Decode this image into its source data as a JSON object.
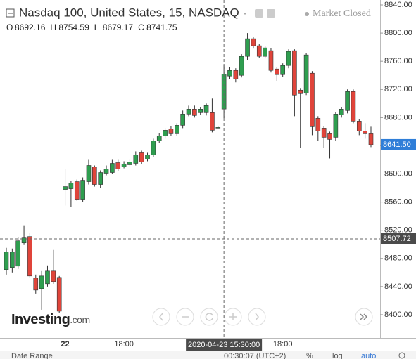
{
  "chart_data": {
    "type": "candlestick",
    "title": "Nasdaq 100, United States, 15, NASDAQ",
    "status": "Market Closed",
    "brand": "Investing",
    "brand_suffix": ".com",
    "ohlc_letters": [
      "O",
      "H",
      "L",
      "C"
    ],
    "ohlc_values": [
      8692.16,
      8754.59,
      8679.17,
      8741.75
    ],
    "categories": [
      null,
      null,
      null,
      null,
      null,
      null,
      null,
      null,
      null,
      null,
      "22",
      null,
      null,
      null,
      null,
      null,
      null,
      null,
      null,
      null,
      "18:00",
      null,
      null,
      null,
      null,
      null,
      null,
      null,
      null,
      null,
      null,
      null,
      null,
      null,
      null,
      null,
      null,
      "2020-04-23 15:30:00",
      null,
      null,
      null,
      null,
      null,
      null,
      null,
      null,
      null,
      "18:00",
      null,
      null,
      null,
      null,
      null,
      null,
      null,
      null,
      null,
      null,
      null,
      null,
      null,
      null,
      null
    ],
    "crosshair_category": "2020-04-23 15:30:00",
    "crosshair_price": 8507.72,
    "last_price": {
      "value": 8641.5,
      "label": "8641.50"
    },
    "open": [
      8464,
      8467,
      8469,
      8502,
      8511,
      8452,
      8437,
      8444,
      8462,
      8453,
      8578,
      8579,
      8589,
      8564,
      8589,
      8610,
      8585,
      8601,
      8602,
      8616,
      8610,
      8613,
      8615,
      8630,
      8621,
      8627,
      8647,
      8654,
      8664,
      8657,
      8669,
      8685,
      8692,
      8687,
      8687,
      8687,
      8666,
      8692.16,
      8739,
      8747,
      8740,
      8767,
      8792,
      8782,
      8767,
      8775,
      8749,
      8741,
      8754,
      8775,
      8719,
      8715,
      8743,
      8679,
      8665,
      8657,
      8652,
      8684,
      8690,
      8717,
      8675,
      8661,
      8657
    ],
    "high": [
      8495,
      8494,
      8510,
      8527,
      8516,
      8457,
      8462,
      8470,
      8492,
      8455,
      8607,
      8590,
      8592,
      8595,
      8620,
      8612,
      8605,
      8612,
      8620,
      8620,
      8618,
      8620,
      8632,
      8633,
      8630,
      8650,
      8658,
      8665,
      8668,
      8672,
      8690,
      8697,
      8697,
      8695,
      8700,
      8707,
      8667,
      8754.59,
      8752,
      8750,
      8770,
      8800,
      8795,
      8785,
      8782,
      8779,
      8752,
      8757,
      8777,
      8777,
      8722,
      8772,
      8746,
      8682,
      8668,
      8660,
      8688,
      8695,
      8720,
      8720,
      8678,
      8672,
      8667
    ],
    "low": [
      8457,
      8460,
      8465,
      8499,
      8452,
      8430,
      8407,
      8440,
      8444,
      8402,
      8555,
      8553,
      8562,
      8560,
      8585,
      8582,
      8580,
      8598,
      8600,
      8604,
      8608,
      8611,
      8612,
      8614,
      8618,
      8624,
      8644,
      8650,
      8654,
      8654,
      8665,
      8682,
      8680,
      8684,
      8683,
      8659,
      8665,
      8679.17,
      8735,
      8730,
      8737,
      8762,
      8778,
      8765,
      8764,
      8744,
      8732,
      8738,
      8750,
      8682,
      8637,
      8712,
      8655,
      8647,
      8637,
      8622,
      8647,
      8680,
      8686,
      8672,
      8655,
      8650,
      8638
    ],
    "close": [
      8489,
      8489,
      8505,
      8509,
      8455,
      8435,
      8455,
      8462,
      8447,
      8405,
      8582,
      8587,
      8564,
      8591,
      8612,
      8585,
      8602,
      8607,
      8615,
      8607,
      8614,
      8617,
      8627,
      8617,
      8627,
      8647,
      8654,
      8662,
      8657,
      8669,
      8685,
      8692,
      8683,
      8692,
      8697,
      8662,
      8666,
      8741.75,
      8747,
      8735,
      8767,
      8792,
      8782,
      8767,
      8779,
      8747,
      8741,
      8754,
      8774,
      8712,
      8714,
      8769,
      8667,
      8661,
      8652,
      8649,
      8685,
      8692,
      8717,
      8675,
      8661,
      8657,
      8641.5
    ],
    "up_color": "#2e9e4f",
    "down_color": "#e0443a",
    "ylim": [
      8367,
      8847
    ],
    "yticks": [
      {
        "value": 8400,
        "label": "8400.00"
      },
      {
        "value": 8440,
        "label": "8440.00"
      },
      {
        "value": 8480,
        "label": "8480.00"
      },
      {
        "value": 8520,
        "label": "8520.00"
      },
      {
        "value": 8560,
        "label": "8560.00"
      },
      {
        "value": 8600,
        "label": "8600.00"
      },
      {
        "value": 8640,
        "label": "8640.00"
      },
      {
        "value": 8680,
        "label": "8680.00"
      },
      {
        "value": 8720,
        "label": "8720.00"
      },
      {
        "value": 8760,
        "label": "8760.00"
      },
      {
        "value": 8800,
        "label": "8800.00"
      },
      {
        "value": 8840,
        "label": "8840.00"
      }
    ],
    "footer": {
      "date_range": "Date Range",
      "clock": "00:30:07 (UTC+2)",
      "percent": "%",
      "log": "log",
      "auto": "auto"
    }
  }
}
